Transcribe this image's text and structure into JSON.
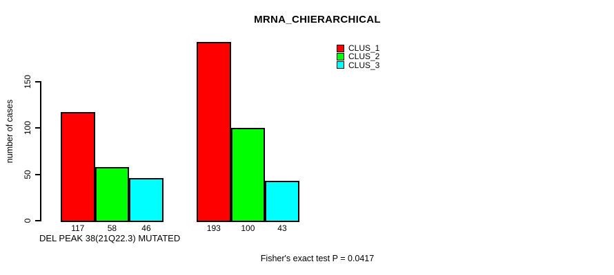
{
  "chart_data": {
    "type": "bar",
    "title": "MRNA_CHIERARCHICAL",
    "ylabel": "number of cases",
    "xlabel": "DEL PEAK 38(21Q22.3) MUTATED",
    "footnote": "Fisher's exact test P = 0.0417",
    "categories": [
      "DEL PEAK 38(21Q22.3) MUTATED",
      ""
    ],
    "series": [
      {
        "name": "CLUS_1",
        "color": "#ff0000",
        "values": [
          117,
          193
        ]
      },
      {
        "name": "CLUS_2",
        "color": "#00ff00",
        "values": [
          58,
          100
        ]
      },
      {
        "name": "CLUS_3",
        "color": "#00ffff",
        "values": [
          46,
          43
        ]
      }
    ],
    "yticks": [
      0,
      50,
      100,
      150
    ],
    "ylim": [
      0,
      150
    ],
    "grid": false,
    "legend_position": "top-right",
    "bar_border_color": "#000000",
    "background_color": "#ffffff"
  }
}
